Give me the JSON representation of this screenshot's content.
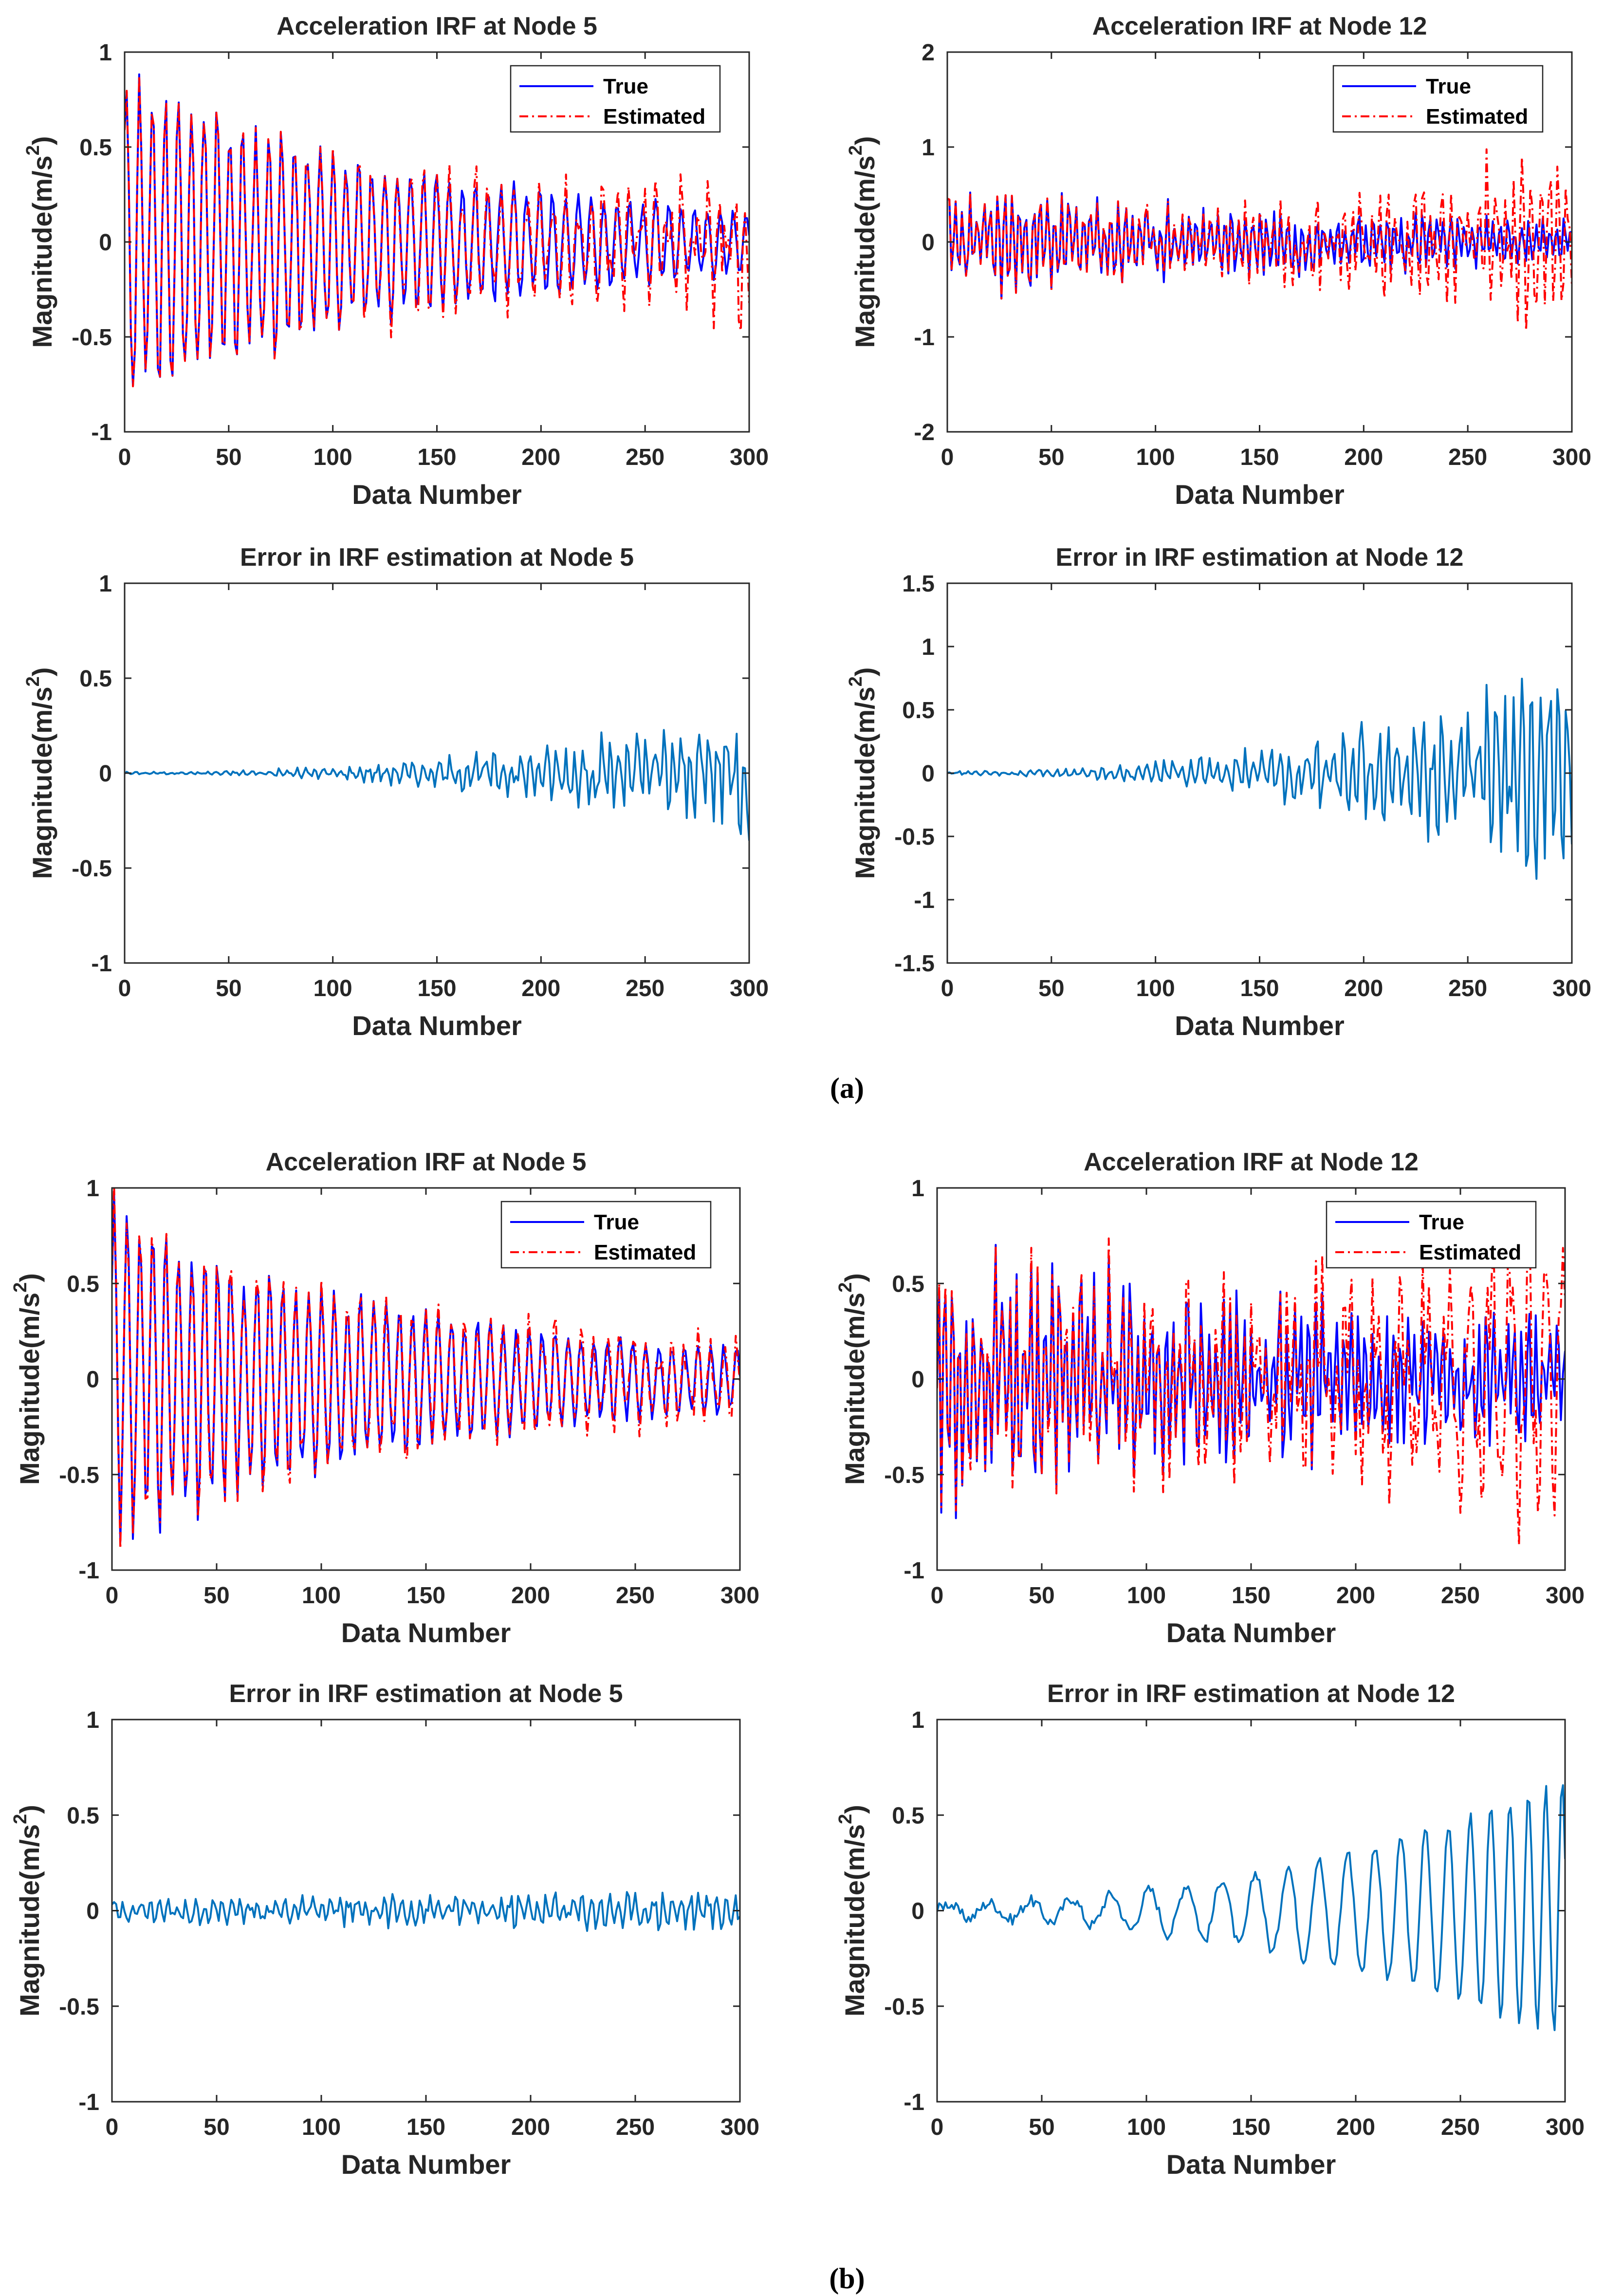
{
  "figure": {
    "caption_a": "(a)",
    "caption_b": "(b)"
  },
  "colors": {
    "true_series": "#0000ff",
    "estimated_series": "#ff0000",
    "error_series": "#0072bd",
    "axes": "#262626"
  },
  "chart_data": [
    {
      "id": "a-node5-irf",
      "type": "line",
      "title": "Acceleration IRF at Node 5",
      "xlabel": "Data Number",
      "ylabel": "Magnitude(m/s2)",
      "xlim": [
        0,
        300
      ],
      "ylim": [
        -1,
        1
      ],
      "xticks": [
        0,
        50,
        100,
        150,
        200,
        250,
        300
      ],
      "yticks": [
        -1,
        -0.5,
        0,
        0.5,
        1
      ],
      "ytick_labels": [
        "-1",
        "-0.5",
        "0",
        "0.5",
        "1"
      ],
      "legend": {
        "location": "top-right",
        "entries": [
          "True",
          "Estimated"
        ]
      },
      "series": [
        {
          "name": "True",
          "style": "solid",
          "color": "#0000ff",
          "signal": {
            "seed": 11,
            "peak": 0.85,
            "decay": 0.007,
            "floor": 0.07,
            "period": 6.2,
            "noise": 0.15
          }
        },
        {
          "name": "Estimated",
          "style": "dashdot",
          "color": "#ff0000",
          "signal": {
            "seed": 11,
            "peak": 0.85,
            "decay": 0.007,
            "floor": 0.07,
            "period": 6.2,
            "noise": 0.15,
            "err_amp": 0.3,
            "err_seed": 101
          }
        }
      ]
    },
    {
      "id": "a-node12-irf",
      "type": "line",
      "title": "Acceleration IRF at Node 12",
      "xlabel": "Data Number",
      "ylabel": "Magnitude(m/s2)",
      "xlim": [
        0,
        300
      ],
      "ylim": [
        -2,
        2
      ],
      "xticks": [
        0,
        50,
        100,
        150,
        200,
        250,
        300
      ],
      "yticks": [
        -2,
        -1,
        0,
        1,
        2
      ],
      "ytick_labels": [
        "-2",
        "-1",
        "0",
        "1",
        "2"
      ],
      "legend": {
        "location": "top-right",
        "entries": [
          "True",
          "Estimated"
        ]
      },
      "series": [
        {
          "name": "True",
          "style": "solid",
          "color": "#0000ff",
          "signal": {
            "seed": 23,
            "peak": 0.45,
            "decay": 0.004,
            "floor": 0.1,
            "period": 3.4,
            "noise": 0.45
          }
        },
        {
          "name": "Estimated",
          "style": "dashdot",
          "color": "#ff0000",
          "signal": {
            "seed": 23,
            "peak": 0.45,
            "decay": 0.004,
            "floor": 0.1,
            "period": 3.4,
            "noise": 0.45,
            "err_amp": 0.75,
            "err_seed": 202
          }
        }
      ]
    },
    {
      "id": "a-node5-error",
      "type": "line",
      "title": "Error in IRF estimation at Node 5",
      "xlabel": "Data Number",
      "ylabel": "Magnitude(m/s2)",
      "xlim": [
        0,
        300
      ],
      "ylim": [
        -1,
        1
      ],
      "xticks": [
        0,
        50,
        100,
        150,
        200,
        250,
        300
      ],
      "yticks": [
        -1,
        -0.5,
        0,
        0.5,
        1
      ],
      "ytick_labels": [
        "-1",
        "-0.5",
        "0",
        "0.5",
        "1"
      ],
      "series": [
        {
          "name": "Error",
          "style": "solid",
          "color": "#0072bd",
          "signal": {
            "error_only": true,
            "err_amp": 0.3,
            "err_seed": 101
          }
        }
      ]
    },
    {
      "id": "a-node12-error",
      "type": "line",
      "title": "Error in IRF estimation at Node 12",
      "xlabel": "Data Number",
      "ylabel": "Magnitude(m/s2)",
      "xlim": [
        0,
        300
      ],
      "ylim": [
        -1.5,
        1.5
      ],
      "xticks": [
        0,
        50,
        100,
        150,
        200,
        250,
        300
      ],
      "yticks": [
        -1.5,
        -1,
        -0.5,
        0,
        0.5,
        1,
        1.5
      ],
      "ytick_labels": [
        "-1.5",
        "-1",
        "-0.5",
        "0",
        "0.5",
        "1",
        "1.5"
      ],
      "series": [
        {
          "name": "Error",
          "style": "solid",
          "color": "#0072bd",
          "signal": {
            "error_only": true,
            "err_amp": 0.75,
            "err_seed": 202
          }
        }
      ]
    },
    {
      "id": "b-node5-irf",
      "type": "line",
      "title": "Acceleration IRF at Node 5",
      "xlabel": "Data Number",
      "ylabel": "Magnitude(m/s2)",
      "xlim": [
        0,
        300
      ],
      "ylim": [
        -1,
        1
      ],
      "xticks": [
        0,
        50,
        100,
        150,
        200,
        250,
        300
      ],
      "yticks": [
        -1,
        -0.5,
        0,
        0.5,
        1
      ],
      "ytick_labels": [
        "-1",
        "-0.5",
        "0",
        "0.5",
        "1"
      ],
      "legend": {
        "location": "top-right",
        "entries": [
          "True",
          "Estimated"
        ]
      },
      "series": [
        {
          "name": "True",
          "style": "solid",
          "color": "#0000ff",
          "signal": {
            "seed": 37,
            "peak": 0.85,
            "decay": 0.007,
            "floor": 0.07,
            "period": 6.2,
            "noise": 0.15
          }
        },
        {
          "name": "Estimated",
          "style": "dashdot",
          "color": "#ff0000",
          "signal": {
            "seed": 37,
            "peak": 0.85,
            "decay": 0.007,
            "floor": 0.07,
            "period": 6.2,
            "noise": 0.15,
            "err_amp": 0.1,
            "err_seed": 303,
            "err_grow": false
          }
        }
      ]
    },
    {
      "id": "b-node12-irf",
      "type": "line",
      "title": "Acceleration IRF at Node 12",
      "xlabel": "Data Number",
      "ylabel": "Magnitude(m/s2)",
      "xlim": [
        0,
        300
      ],
      "ylim": [
        -1,
        1
      ],
      "xticks": [
        0,
        50,
        100,
        150,
        200,
        250,
        300
      ],
      "yticks": [
        -1,
        -0.5,
        0,
        0.5,
        1
      ],
      "ytick_labels": [
        "-1",
        "-0.5",
        "0",
        "0.5",
        "1"
      ],
      "legend": {
        "location": "top-right",
        "entries": [
          "True",
          "Estimated"
        ]
      },
      "series": [
        {
          "name": "True",
          "style": "solid",
          "color": "#0000ff",
          "signal": {
            "seed": 53,
            "peak": 0.55,
            "decay": 0.004,
            "floor": 0.12,
            "period": 3.4,
            "noise": 0.5
          }
        },
        {
          "name": "Estimated",
          "style": "dashdot",
          "color": "#ff0000",
          "signal": {
            "seed": 53,
            "peak": 0.55,
            "decay": 0.004,
            "floor": 0.12,
            "period": 3.4,
            "noise": 0.5,
            "err_amp": 0.35,
            "err_seed": 404,
            "err_slow": true
          }
        }
      ]
    },
    {
      "id": "b-node5-error",
      "type": "line",
      "title": "Error in IRF estimation at Node 5",
      "xlabel": "Data Number",
      "ylabel": "Magnitude(m/s2)",
      "xlim": [
        0,
        300
      ],
      "ylim": [
        -1,
        1
      ],
      "xticks": [
        0,
        50,
        100,
        150,
        200,
        250,
        300
      ],
      "yticks": [
        -1,
        -0.5,
        0,
        0.5,
        1
      ],
      "ytick_labels": [
        "-1",
        "-0.5",
        "0",
        "0.5",
        "1"
      ],
      "series": [
        {
          "name": "Error",
          "style": "solid",
          "color": "#0072bd",
          "signal": {
            "error_only": true,
            "err_amp": 0.1,
            "err_seed": 303,
            "err_grow": false
          }
        }
      ]
    },
    {
      "id": "b-node12-error",
      "type": "line",
      "title": "Error in IRF estimation at Node 12",
      "xlabel": "Data Number",
      "ylabel": "Magnitude(m/s2)",
      "xlim": [
        0,
        300
      ],
      "ylim": [
        -1,
        1
      ],
      "xticks": [
        0,
        50,
        100,
        150,
        200,
        250,
        300
      ],
      "yticks": [
        -1,
        -0.5,
        0,
        0.5,
        1
      ],
      "ytick_labels": [
        "-1",
        "-0.5",
        "0",
        "0.5",
        "1"
      ],
      "series": [
        {
          "name": "Error",
          "style": "solid",
          "color": "#0072bd",
          "signal": {
            "error_only": true,
            "err_amp": 0.35,
            "err_seed": 404,
            "err_slow": true
          }
        }
      ]
    }
  ]
}
